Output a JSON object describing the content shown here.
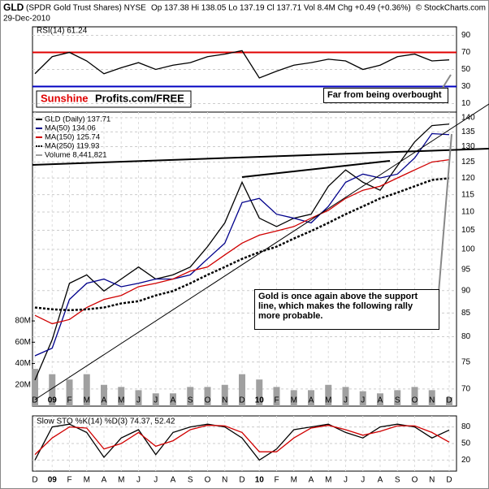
{
  "header": {
    "symbol": "GLD",
    "name": "(SPDR Gold Trust Shares) NYSE",
    "date": "29-Dec-2010",
    "quote": "Op 137.38  Hi 138.05  Lo 137.19  Cl 137.71  Vol 8.4M  Chg +0.49 (+0.36%)",
    "source": "© StockCharts.com",
    "logo_red": "Sunshine",
    "logo_black": "Profits.com/FREE"
  },
  "chart_data": [
    {
      "type": "line",
      "title": "RSI(14) 61.24",
      "ylim": [
        0,
        100
      ],
      "yticks": [
        10,
        30,
        50,
        70,
        90
      ],
      "grid": true,
      "reference_lines": [
        {
          "value": 70,
          "color": "#e00000"
        },
        {
          "value": 30,
          "color": "#0000c0"
        }
      ],
      "series": [
        {
          "color": "#000000",
          "values": [
            45,
            65,
            70,
            60,
            45,
            52,
            58,
            50,
            55,
            58,
            65,
            68,
            72,
            40,
            48,
            55,
            58,
            62,
            60,
            50,
            55,
            65,
            68,
            60,
            61.24
          ]
        }
      ],
      "annotations": [
        "Far from being overbought"
      ]
    },
    {
      "type": "line",
      "log": true,
      "grid": true,
      "categories": [
        "D",
        "09",
        "F",
        "M",
        "A",
        "M",
        "J",
        "J",
        "A",
        "S",
        "O",
        "N",
        "D",
        "10",
        "F",
        "M",
        "A",
        "M",
        "J",
        "J",
        "A",
        "S",
        "O",
        "N",
        "D"
      ],
      "ylim": [
        67,
        142
      ],
      "yticks": [
        70,
        75,
        80,
        85,
        90,
        95,
        100,
        105,
        110,
        115,
        120,
        125,
        130,
        135,
        140
      ],
      "y2lim": [
        0,
        276000000
      ],
      "y2ticks": [
        {
          "value": 20000000,
          "label": "20M"
        },
        {
          "value": 40000000,
          "label": "40M"
        },
        {
          "value": 60000000,
          "label": "60M"
        },
        {
          "value": 80000000,
          "label": "80M"
        }
      ],
      "series": [
        {
          "name": "GLD (Daily) 137.71",
          "color": "#000000",
          "values": [
            71.6,
            79.4,
            91.7,
            93.7,
            89.9,
            92.7,
            95.6,
            92.7,
            93.7,
            95.6,
            100.7,
            107,
            118.7,
            108.3,
            106,
            108.3,
            109.4,
            117.5,
            122.5,
            118.7,
            116.3,
            123.8,
            131.6,
            137.2,
            137.71
          ]
        },
        {
          "name": "MA(50) 134.06",
          "color": "#00008b",
          "values": [
            76.2,
            77.7,
            88,
            91.7,
            92.7,
            90.9,
            91.7,
            92.7,
            92.7,
            93.7,
            97.6,
            101.6,
            112.7,
            113.9,
            109.4,
            108.3,
            107,
            111.6,
            118.7,
            121.2,
            120,
            121.2,
            126.3,
            134.4,
            134.06
          ]
        },
        {
          "name": "MA(150) 125.74",
          "color": "#d00000",
          "values": [
            84.5,
            82.7,
            83.6,
            86.2,
            88,
            88.9,
            90.9,
            91.7,
            92.7,
            94.6,
            95.6,
            98.6,
            101.6,
            103.7,
            104.8,
            106,
            108.3,
            110.5,
            113.9,
            116.3,
            117.5,
            120,
            122.5,
            125,
            125.74
          ]
        },
        {
          "name": "MA(250) 119.93",
          "color": "#000000",
          "dash": true,
          "values": [
            86.2,
            85.8,
            85.6,
            85.8,
            86.2,
            87.1,
            87.6,
            88.9,
            89.9,
            91.7,
            93.7,
            95.6,
            97.6,
            99.3,
            100.7,
            102.8,
            104.8,
            107,
            109.4,
            111.6,
            113.9,
            115.6,
            117.5,
            119.4,
            119.93
          ]
        },
        {
          "name": "Volume 8,441,821",
          "color": "#a0a0a0",
          "axis": "y2",
          "values": [
            35000000,
            30000000,
            25000000,
            30000000,
            20000000,
            18000000,
            15000000,
            12000000,
            12000000,
            18000000,
            18000000,
            20000000,
            30000000,
            25000000,
            18000000,
            15000000,
            15000000,
            20000000,
            18000000,
            14000000,
            12000000,
            15000000,
            18000000,
            15000000,
            8441821
          ]
        }
      ],
      "annotations": [
        "Gold is once again above the support line, which makes the following rally more probable."
      ]
    },
    {
      "type": "line",
      "title": "Slow STO %K(14) %D(3) 74.37, 52.42",
      "ylim": [
        0,
        100
      ],
      "yticks": [
        20,
        50,
        80
      ],
      "grid": true,
      "categories": [
        "D",
        "09",
        "F",
        "M",
        "A",
        "M",
        "J",
        "J",
        "A",
        "S",
        "O",
        "N",
        "D",
        "10",
        "F",
        "M",
        "A",
        "M",
        "J",
        "J",
        "A",
        "S",
        "O",
        "N",
        "D"
      ],
      "series": [
        {
          "color": "#000000",
          "values": [
            20,
            80,
            85,
            70,
            25,
            60,
            75,
            30,
            70,
            80,
            85,
            80,
            60,
            20,
            40,
            75,
            80,
            85,
            70,
            60,
            80,
            85,
            80,
            60,
            74.37
          ]
        },
        {
          "color": "#d00000",
          "values": [
            30,
            60,
            80,
            78,
            40,
            50,
            70,
            45,
            55,
            75,
            83,
            82,
            70,
            35,
            35,
            60,
            78,
            83,
            75,
            65,
            72,
            82,
            82,
            70,
            52.42
          ]
        }
      ]
    }
  ]
}
